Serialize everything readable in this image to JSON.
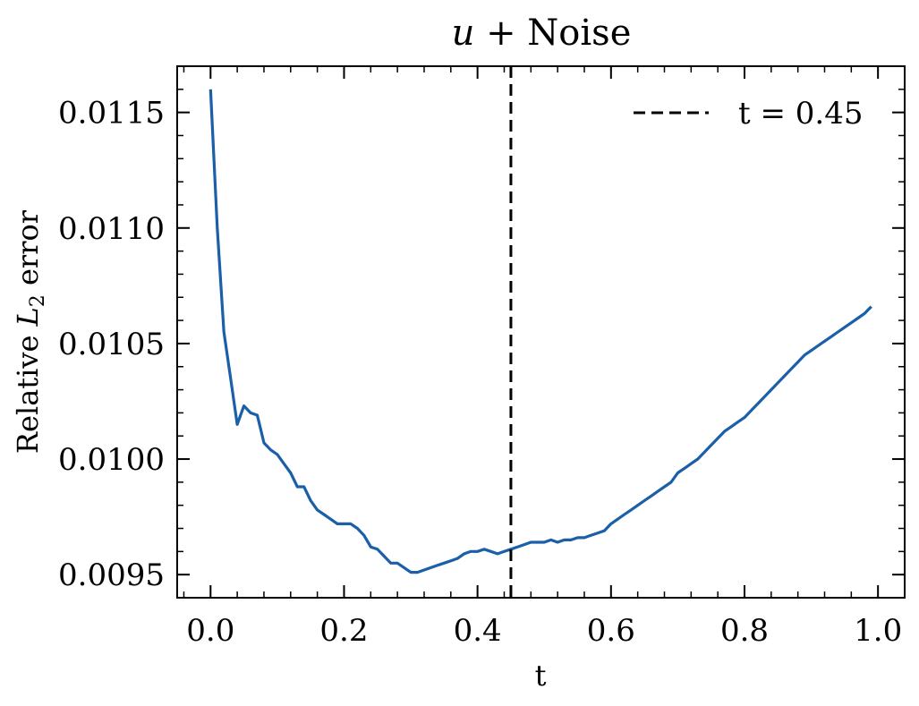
{
  "chart_data": {
    "type": "line",
    "title": "u + Noise",
    "xlabel": "t",
    "ylabel": "Relative L2 error",
    "xlim": [
      -0.05,
      1.04
    ],
    "ylim": [
      0.0094,
      0.0117
    ],
    "xticks": [
      0.0,
      0.2,
      0.4,
      0.6,
      0.8,
      1.0
    ],
    "xtick_labels": [
      "0.0",
      "0.2",
      "0.4",
      "0.6",
      "0.8",
      "1.0"
    ],
    "yticks": [
      0.0095,
      0.01,
      0.0105,
      0.011,
      0.0115
    ],
    "ytick_labels": [
      "0.0095",
      "0.0100",
      "0.0105",
      "0.0110",
      "0.0115"
    ],
    "grid": false,
    "legend_position": "top-right",
    "series": [
      {
        "color": "#1a5fa8",
        "x": [
          0.0,
          0.01,
          0.02,
          0.03,
          0.04,
          0.05,
          0.06,
          0.07,
          0.08,
          0.09,
          0.1,
          0.11,
          0.12,
          0.13,
          0.14,
          0.15,
          0.16,
          0.17,
          0.18,
          0.19,
          0.2,
          0.21,
          0.22,
          0.23,
          0.24,
          0.25,
          0.26,
          0.27,
          0.28,
          0.29,
          0.3,
          0.31,
          0.32,
          0.33,
          0.34,
          0.35,
          0.36,
          0.37,
          0.38,
          0.39,
          0.4,
          0.41,
          0.42,
          0.43,
          0.44,
          0.45,
          0.46,
          0.47,
          0.48,
          0.49,
          0.5,
          0.51,
          0.52,
          0.53,
          0.54,
          0.55,
          0.56,
          0.57,
          0.58,
          0.59,
          0.6,
          0.61,
          0.62,
          0.63,
          0.64,
          0.65,
          0.66,
          0.67,
          0.68,
          0.69,
          0.7,
          0.71,
          0.72,
          0.73,
          0.74,
          0.75,
          0.76,
          0.77,
          0.78,
          0.79,
          0.8,
          0.81,
          0.82,
          0.83,
          0.84,
          0.85,
          0.86,
          0.87,
          0.88,
          0.89,
          0.9,
          0.91,
          0.92,
          0.93,
          0.94,
          0.95,
          0.96,
          0.97,
          0.98,
          0.99
        ],
        "y": [
          0.0116,
          0.011,
          0.01055,
          0.01035,
          0.01015,
          0.01023,
          0.0102,
          0.01019,
          0.01007,
          0.01004,
          0.01002,
          0.00998,
          0.00994,
          0.00988,
          0.00988,
          0.00982,
          0.00978,
          0.00976,
          0.00974,
          0.00972,
          0.00972,
          0.00972,
          0.0097,
          0.00967,
          0.00962,
          0.00961,
          0.00958,
          0.00955,
          0.00955,
          0.00953,
          0.00951,
          0.00951,
          0.00952,
          0.00953,
          0.00954,
          0.00955,
          0.00956,
          0.00957,
          0.00959,
          0.0096,
          0.0096,
          0.00961,
          0.0096,
          0.00959,
          0.0096,
          0.00961,
          0.00962,
          0.00963,
          0.00964,
          0.00964,
          0.00964,
          0.00965,
          0.00964,
          0.00965,
          0.00965,
          0.00966,
          0.00966,
          0.00967,
          0.00968,
          0.00969,
          0.00972,
          0.00974,
          0.00976,
          0.00978,
          0.0098,
          0.00982,
          0.00984,
          0.00986,
          0.00988,
          0.0099,
          0.00994,
          0.00996,
          0.00998,
          0.01,
          0.01003,
          0.01006,
          0.01009,
          0.01012,
          0.01014,
          0.01016,
          0.01018,
          0.01021,
          0.01024,
          0.01027,
          0.0103,
          0.01033,
          0.01036,
          0.01039,
          0.01042,
          0.01045,
          0.01047,
          0.01049,
          0.01051,
          0.01053,
          0.01055,
          0.01057,
          0.01059,
          0.01061,
          0.01063,
          0.01066
        ]
      }
    ],
    "reference_line": {
      "x": 0.45,
      "style": "dashed",
      "color": "#000000",
      "legend_label": "t = 0.45"
    }
  }
}
